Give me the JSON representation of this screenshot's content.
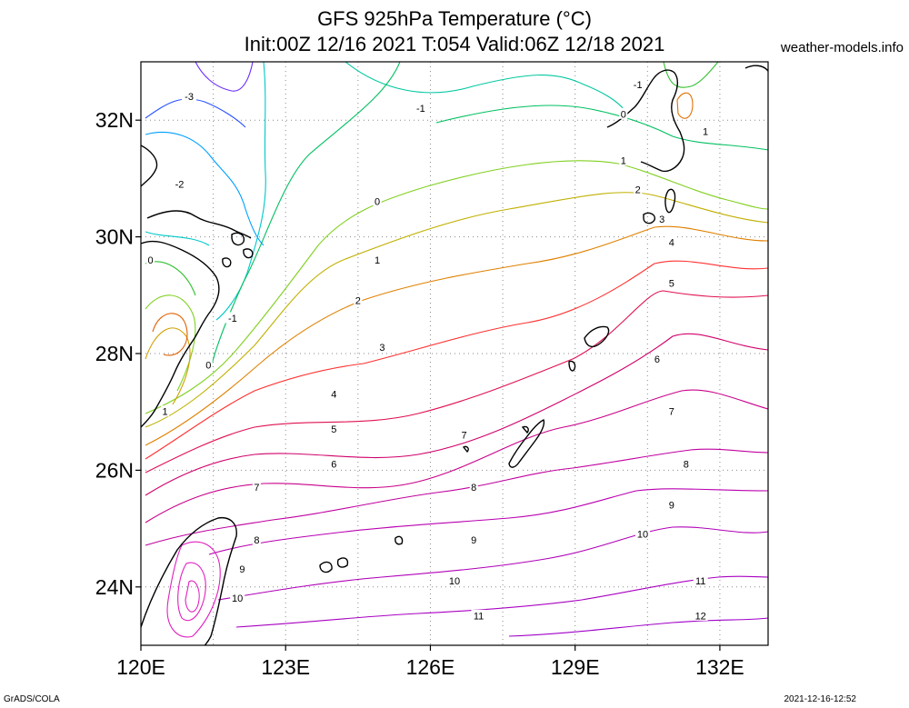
{
  "header": {
    "title_line1": "GFS 925hPa Temperature (°C)",
    "title_line2": "Init:00Z 12/16 2021 T:054 Valid:06Z 12/18 2021",
    "credit": "weather-models.info"
  },
  "footer": {
    "left": "GrADS/COLA",
    "right": "2021-12-16-12:52"
  },
  "colors": {
    "coast": "#000000",
    "grid": "#8a8a8a"
  },
  "map": {
    "lon_range": [
      120,
      133
    ],
    "lat_range": [
      23,
      33
    ],
    "x_ticks": [
      {
        "lon": 120,
        "label": "120E"
      },
      {
        "lon": 123,
        "label": "123E"
      },
      {
        "lon": 126,
        "label": "126E"
      },
      {
        "lon": 129,
        "label": "129E"
      },
      {
        "lon": 132,
        "label": "132E"
      }
    ],
    "y_ticks": [
      {
        "lat": 24,
        "label": "24N"
      },
      {
        "lat": 26,
        "label": "26N"
      },
      {
        "lat": 28,
        "label": "28N"
      },
      {
        "lat": 30,
        "label": "30N"
      },
      {
        "lat": 32,
        "label": "32N"
      }
    ],
    "grid_lons": [
      121.5,
      123,
      124.5,
      126,
      127.5,
      129,
      130.5,
      132
    ],
    "grid_lats": [
      24,
      26,
      28,
      30,
      32
    ],
    "contour_labels": [
      {
        "text": "-3",
        "lon": 121.0,
        "lat": 32.4
      },
      {
        "text": "-2",
        "lon": 120.8,
        "lat": 30.9
      },
      {
        "text": "-1",
        "lon": 125.8,
        "lat": 32.2
      },
      {
        "text": "-1",
        "lon": 130.3,
        "lat": 32.6
      },
      {
        "text": "-1",
        "lon": 121.9,
        "lat": 28.6
      },
      {
        "text": "0",
        "lon": 124.9,
        "lat": 30.6
      },
      {
        "text": "0",
        "lon": 120.2,
        "lat": 29.6
      },
      {
        "text": "0",
        "lon": 121.4,
        "lat": 27.8
      },
      {
        "text": "0",
        "lon": 130.0,
        "lat": 32.1
      },
      {
        "text": "1",
        "lon": 124.9,
        "lat": 29.6
      },
      {
        "text": "1",
        "lon": 130.0,
        "lat": 31.3
      },
      {
        "text": "1",
        "lon": 131.7,
        "lat": 31.8
      },
      {
        "text": "1",
        "lon": 120.5,
        "lat": 27.0
      },
      {
        "text": "2",
        "lon": 124.5,
        "lat": 28.9
      },
      {
        "text": "2",
        "lon": 130.3,
        "lat": 30.8
      },
      {
        "text": "3",
        "lon": 125.0,
        "lat": 28.1
      },
      {
        "text": "3",
        "lon": 130.8,
        "lat": 30.3
      },
      {
        "text": "4",
        "lon": 124.0,
        "lat": 27.3
      },
      {
        "text": "4",
        "lon": 131.0,
        "lat": 29.9
      },
      {
        "text": "5",
        "lon": 124.0,
        "lat": 26.7
      },
      {
        "text": "5",
        "lon": 131.0,
        "lat": 29.2
      },
      {
        "text": "6",
        "lon": 124.0,
        "lat": 26.1
      },
      {
        "text": "6",
        "lon": 130.7,
        "lat": 27.9
      },
      {
        "text": "7",
        "lon": 122.4,
        "lat": 25.7
      },
      {
        "text": "7",
        "lon": 126.7,
        "lat": 26.6
      },
      {
        "text": "7",
        "lon": 131.0,
        "lat": 27.0
      },
      {
        "text": "8",
        "lon": 122.4,
        "lat": 24.8
      },
      {
        "text": "8",
        "lon": 126.9,
        "lat": 25.7
      },
      {
        "text": "8",
        "lon": 131.3,
        "lat": 26.1
      },
      {
        "text": "9",
        "lon": 122.1,
        "lat": 24.3
      },
      {
        "text": "9",
        "lon": 126.9,
        "lat": 24.8
      },
      {
        "text": "9",
        "lon": 131.0,
        "lat": 25.4
      },
      {
        "text": "10",
        "lon": 122.0,
        "lat": 23.8
      },
      {
        "text": "10",
        "lon": 126.5,
        "lat": 24.1
      },
      {
        "text": "10",
        "lon": 130.4,
        "lat": 24.9
      },
      {
        "text": "11",
        "lon": 127.0,
        "lat": 23.5
      },
      {
        "text": "11",
        "lon": 131.6,
        "lat": 24.1
      },
      {
        "text": "12",
        "lon": 131.6,
        "lat": 23.5
      }
    ]
  }
}
